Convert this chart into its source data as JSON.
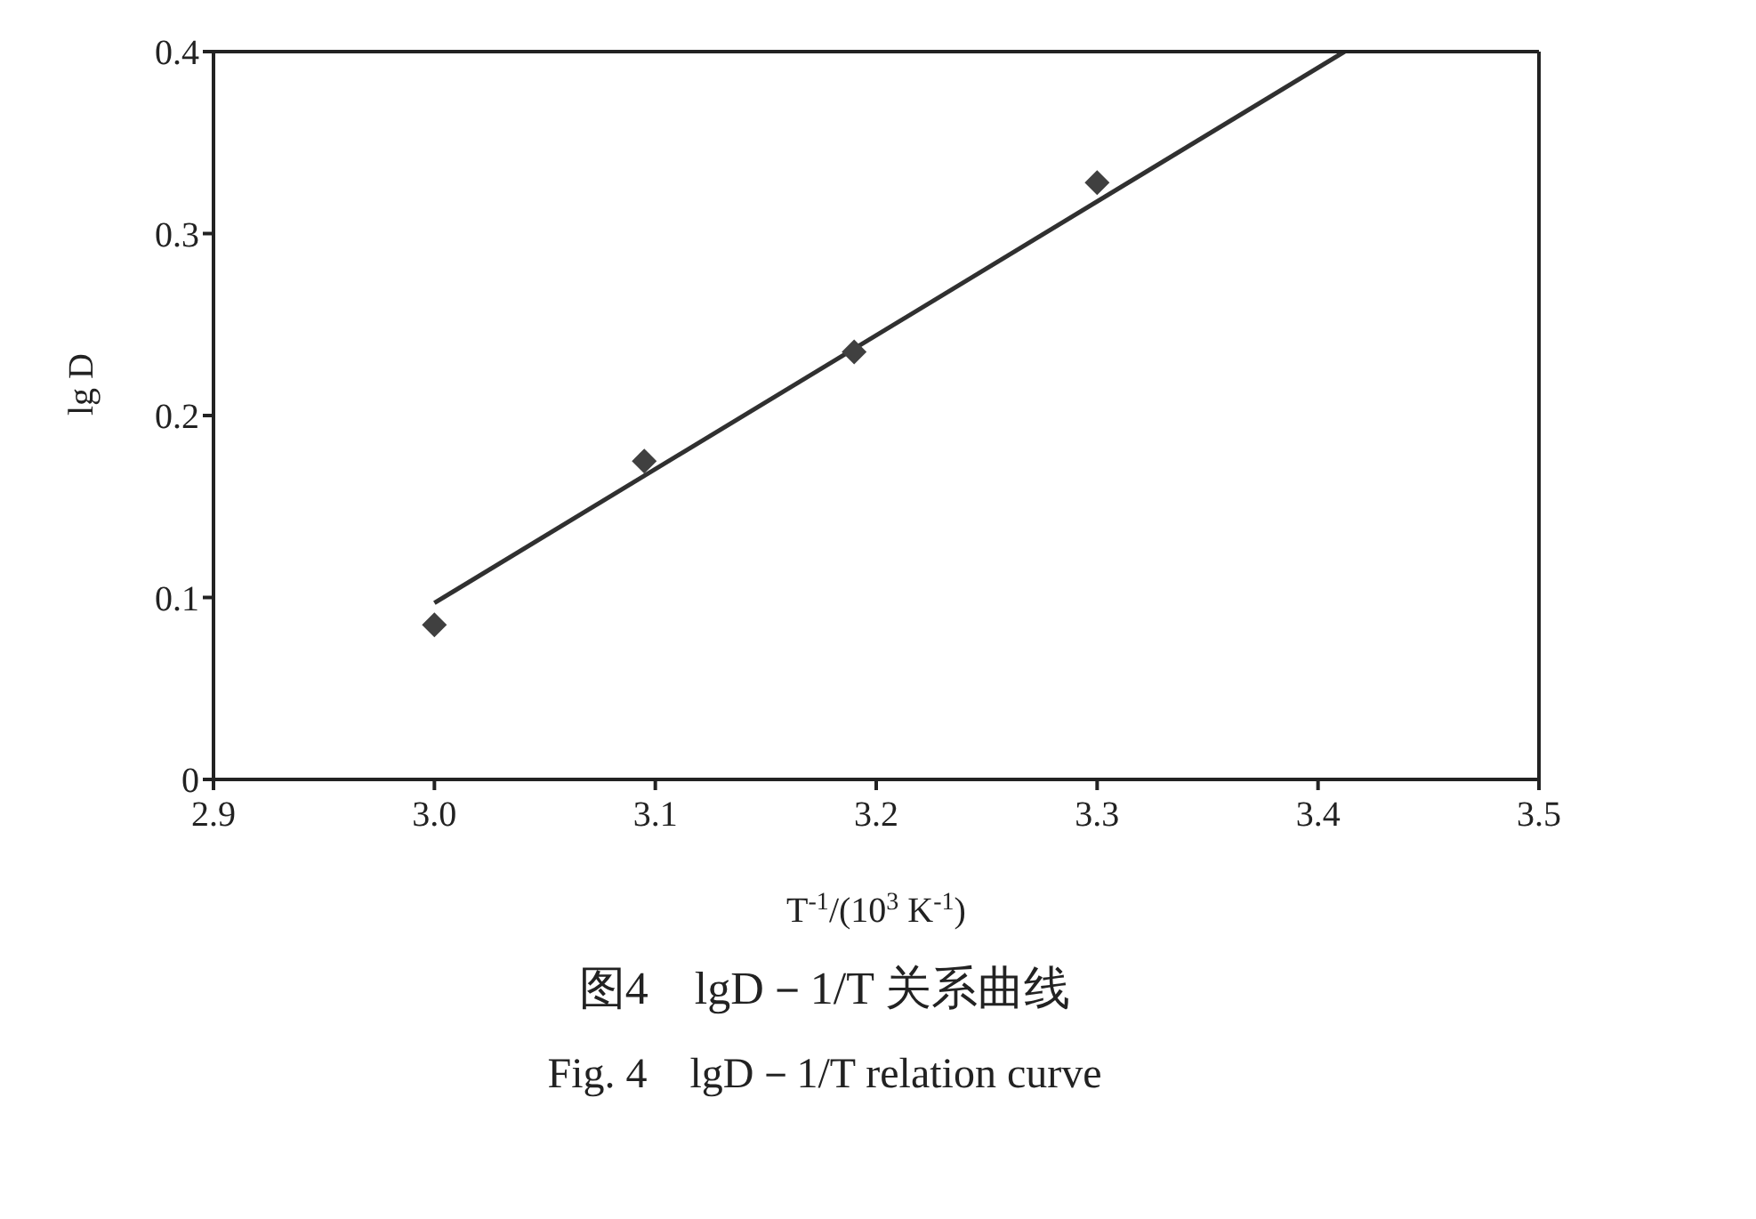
{
  "chart_data": {
    "type": "scatter",
    "title": "图4　lgD－1/T 关系曲线",
    "subtitle": "Fig. 4　lgD－1/T relation curve",
    "xlabel": "T$^{-1}$/(10$^{3}$ K$^{-1}$)",
    "ylabel": "lg D",
    "xlim": [
      2.9,
      3.5
    ],
    "xticks": [
      2.9,
      {
        "value": 3,
        "label": "3.0"
      },
      3.1,
      3.2,
      3.3,
      3.4,
      3.5
    ],
    "ylim": [
      0,
      0.4
    ],
    "yticks": [
      0,
      0.1,
      0.2,
      0.3,
      0.4
    ],
    "grid": false,
    "legend": false,
    "series": [
      {
        "color": "#404040",
        "marker": "diamond",
        "x": [
          3.0,
          3.095,
          3.19,
          3.3
        ],
        "values": [
          0.085,
          0.175,
          0.235,
          0.328
        ]
      },
      {
        "type": "line",
        "color": "#303030",
        "marker": "none",
        "line_style": "solid",
        "x": [
          3.0,
          3.412
        ],
        "values": [
          0.097,
          0.4
        ]
      }
    ]
  }
}
